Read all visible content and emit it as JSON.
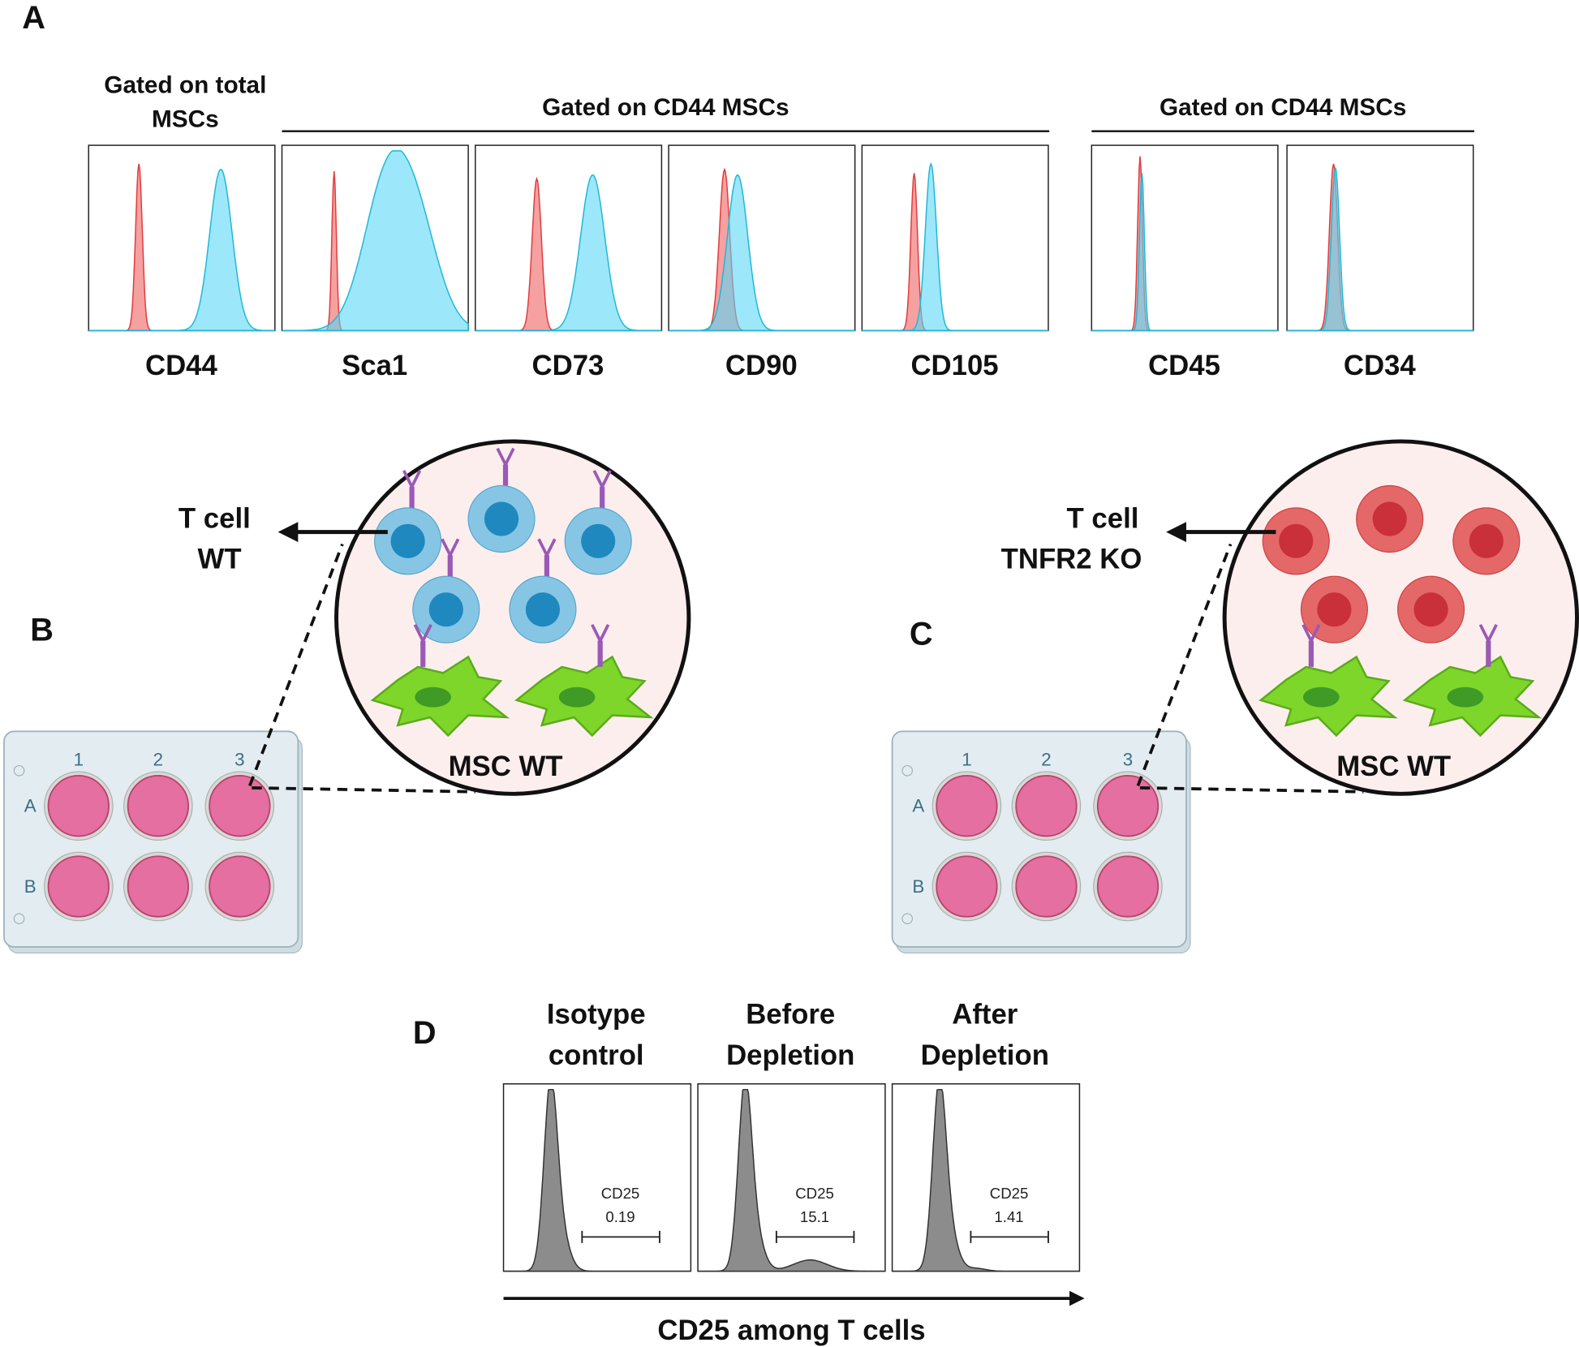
{
  "panel_a": {
    "label": "A",
    "groups": [
      {
        "title": [
          "Gated on total",
          "MSCs"
        ]
      },
      {
        "title": [
          "Gated on CD44 MSCs"
        ]
      },
      {
        "title": [
          "Gated on CD44 MSCs"
        ]
      }
    ],
    "histograms": [
      {
        "marker": "CD44"
      },
      {
        "marker": "Sca1"
      },
      {
        "marker": "CD73"
      },
      {
        "marker": "CD90"
      },
      {
        "marker": "CD105"
      },
      {
        "marker": "CD45"
      },
      {
        "marker": "CD34"
      }
    ]
  },
  "panel_b": {
    "label": "B",
    "t_cell": [
      "T cell",
      "WT"
    ],
    "msc": "MSC WT",
    "plate_columns": [
      "1",
      "2",
      "3"
    ],
    "plate_rows": [
      "A",
      "B"
    ]
  },
  "panel_c": {
    "label": "C",
    "t_cell": [
      "T cell",
      "TNFR2 KO"
    ],
    "msc": "MSC WT",
    "plate_columns": [
      "1",
      "2",
      "3"
    ],
    "plate_rows": [
      "A",
      "B"
    ]
  },
  "panel_d": {
    "label": "D",
    "histograms": [
      {
        "title": [
          "Isotype",
          "control"
        ],
        "gate_label": "CD25",
        "gate_value": 0.19
      },
      {
        "title": [
          "Before",
          "Depletion"
        ],
        "gate_label": "CD25",
        "gate_value": 15.1
      },
      {
        "title": [
          "After",
          "Depletion"
        ],
        "gate_label": "CD25",
        "gate_value": 1.41
      }
    ],
    "axis_label": "CD25 among T cells"
  }
}
